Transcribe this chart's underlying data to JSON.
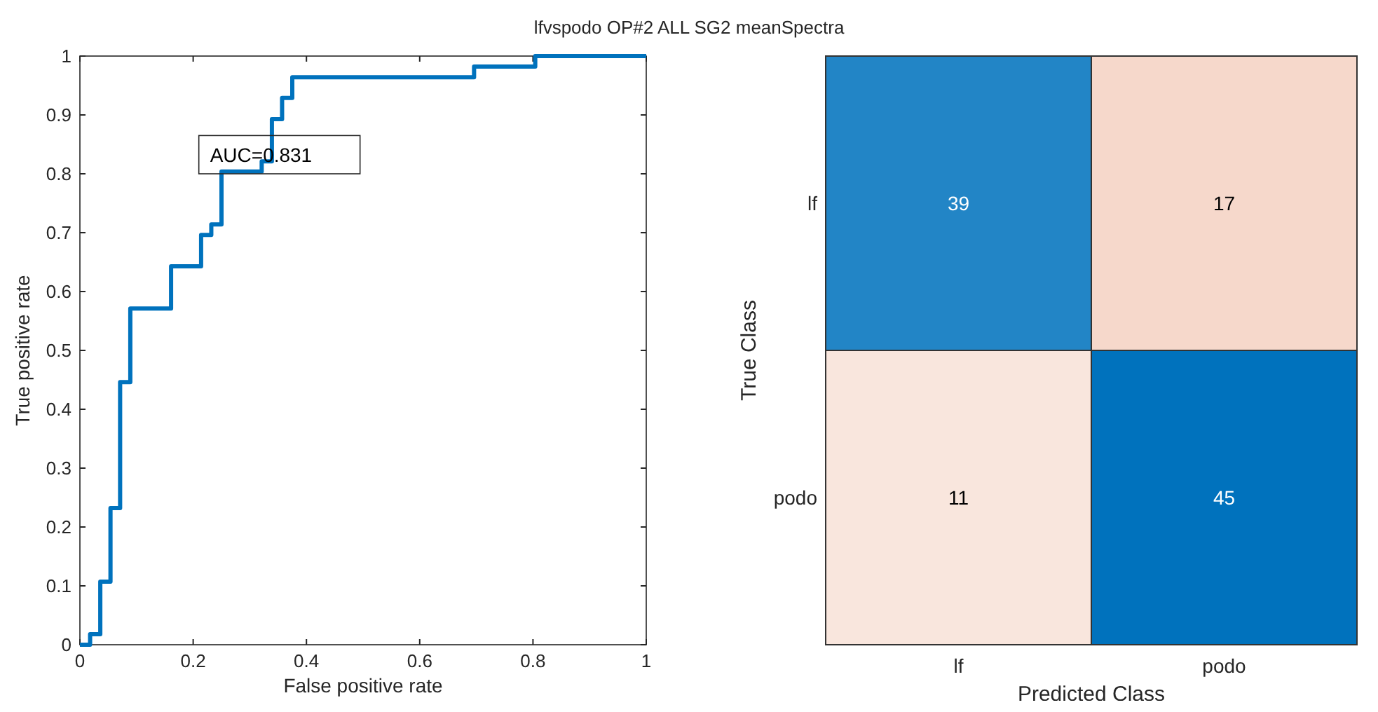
{
  "chart_data": [
    {
      "type": "step",
      "title": "lfvspodo OP#2 ALL SG2 meanSpectra",
      "xlabel": "False positive rate",
      "ylabel": "True positive rate",
      "annotations": [
        "AUC=0.831"
      ],
      "xlim": [
        0,
        1
      ],
      "ylim": [
        0,
        1
      ],
      "xticks": [
        0,
        0.2,
        0.4,
        0.6,
        0.8,
        1
      ],
      "yticks": [
        0,
        0.1,
        0.2,
        0.3,
        0.4,
        0.5,
        0.6,
        0.7,
        0.8,
        0.9,
        1
      ],
      "grid": false,
      "series": [
        {
          "color": "#0072bd",
          "x": [
            0,
            0.018,
            0.036,
            0.054,
            0.071,
            0.089,
            0.161,
            0.214,
            0.232,
            0.25,
            0.321,
            0.339,
            0.357,
            0.375,
            0.696,
            0.804,
            1
          ],
          "values": [
            0,
            0.018,
            0.107,
            0.232,
            0.446,
            0.571,
            0.643,
            0.696,
            0.714,
            0.804,
            0.821,
            0.893,
            0.929,
            0.964,
            0.982,
            1,
            1
          ]
        }
      ]
    },
    {
      "type": "heatmap",
      "xlabel": "Predicted Class",
      "ylabel": "True Class",
      "categories": [
        "lf",
        "podo"
      ],
      "y_categories": [
        "lf",
        "podo"
      ],
      "cells": [
        [
          39,
          17
        ],
        [
          11,
          45
        ]
      ],
      "data_labels": true
    }
  ]
}
